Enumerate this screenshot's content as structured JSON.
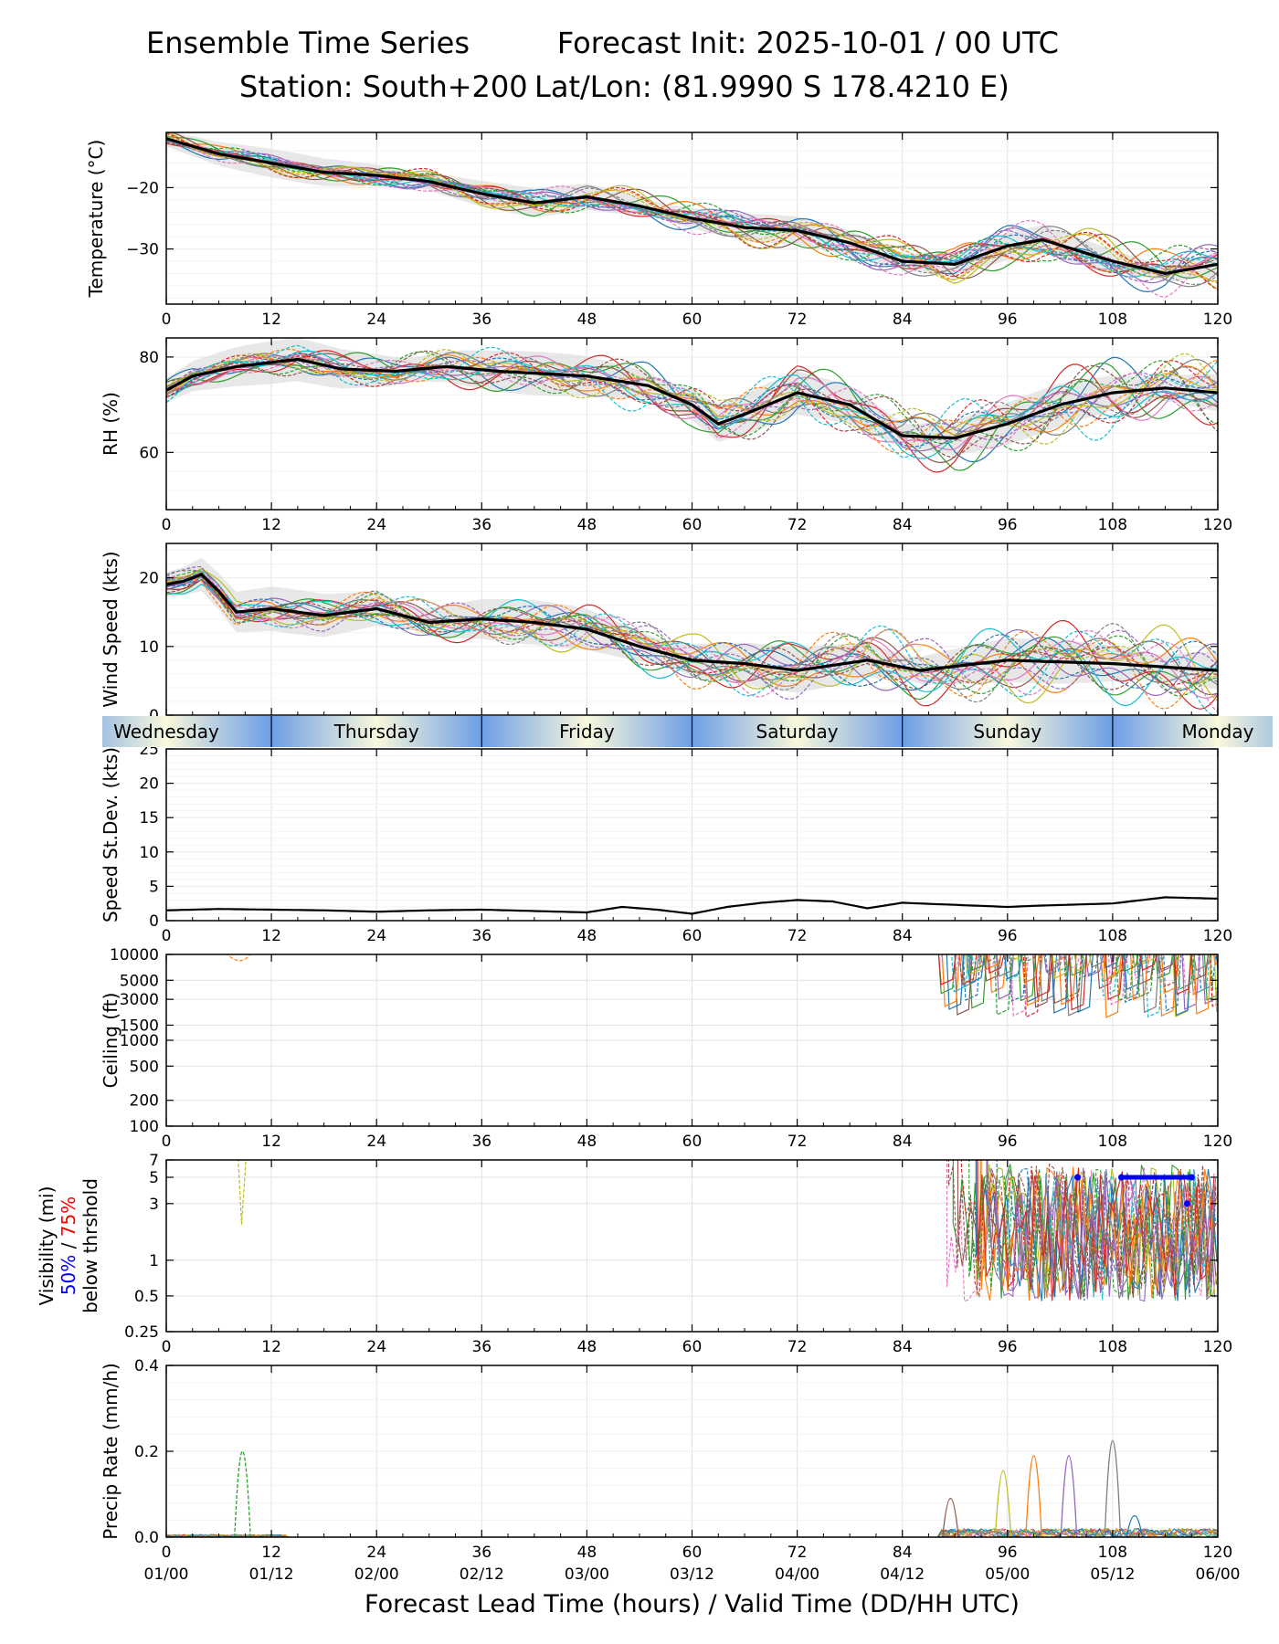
{
  "header": {
    "title_left": "Ensemble Time Series",
    "title_right": "Forecast Init: 2025-10-01 / 00 UTC",
    "station": "Station: South+200",
    "latlon": "Lat/Lon: (81.9990 S 178.4210 E)"
  },
  "colors": {
    "members": [
      "#1f77b4",
      "#ff7f0e",
      "#2ca02c",
      "#d62728",
      "#9467bd",
      "#8c564b",
      "#e377c2",
      "#7f7f7f",
      "#bcbd22",
      "#17becf"
    ],
    "mean": "#000000",
    "spread": "#d9d9d9",
    "day_band_blue": "#6e9ee6",
    "day_band_cream": "#f8f8dc",
    "vis_50": "#0000ff",
    "vis_75": "#ff0000"
  },
  "chart_data": {
    "type": "line",
    "x_label": "Forecast Lead Time (hours) / Valid Time (DD/HH UTC)",
    "x_range": [
      0,
      120
    ],
    "x_ticks": [
      0,
      12,
      24,
      36,
      48,
      60,
      72,
      84,
      96,
      108,
      120
    ],
    "valid_time_ticks": [
      "01/00",
      "01/12",
      "02/00",
      "02/12",
      "03/00",
      "03/12",
      "04/00",
      "04/12",
      "05/00",
      "05/12",
      "06/00"
    ],
    "days": [
      "Wednesday",
      "Thursday",
      "Friday",
      "Saturday",
      "Sunday",
      "Monday"
    ],
    "ensemble_members": 20,
    "panels": [
      {
        "id": "temperature",
        "ylabel": "Temperature (°C)",
        "scale": "linear",
        "ylim": [
          -39,
          -11
        ],
        "y_ticks": [
          -20,
          -30
        ],
        "y_tick_labels": [
          "−20",
          "−30"
        ],
        "mean": [
          [
            0,
            -12
          ],
          [
            6,
            -14.5
          ],
          [
            12,
            -16
          ],
          [
            18,
            -17.5
          ],
          [
            24,
            -18
          ],
          [
            30,
            -19
          ],
          [
            36,
            -21
          ],
          [
            42,
            -22.5
          ],
          [
            48,
            -21.5
          ],
          [
            54,
            -23
          ],
          [
            60,
            -25
          ],
          [
            66,
            -26.5
          ],
          [
            72,
            -27
          ],
          [
            78,
            -29
          ],
          [
            84,
            -32
          ],
          [
            90,
            -32.5
          ],
          [
            96,
            -29.5
          ],
          [
            100,
            -28.5
          ],
          [
            108,
            -32
          ],
          [
            114,
            -34
          ],
          [
            120,
            -32.5
          ]
        ],
        "spread": 1.8
      },
      {
        "id": "rh",
        "ylabel": "RH (%)",
        "scale": "linear",
        "ylim": [
          48,
          84
        ],
        "y_ticks": [
          60,
          80
        ],
        "y_tick_labels": [
          "60",
          "80"
        ],
        "mean": [
          [
            0,
            73
          ],
          [
            3,
            76
          ],
          [
            8,
            78
          ],
          [
            15,
            79.5
          ],
          [
            20,
            77.5
          ],
          [
            26,
            77
          ],
          [
            32,
            78
          ],
          [
            38,
            77
          ],
          [
            48,
            76
          ],
          [
            55,
            74
          ],
          [
            60,
            70
          ],
          [
            63,
            66
          ],
          [
            66,
            68
          ],
          [
            72,
            72.5
          ],
          [
            78,
            70
          ],
          [
            84,
            63.5
          ],
          [
            90,
            63
          ],
          [
            96,
            66
          ],
          [
            102,
            70
          ],
          [
            108,
            72.5
          ],
          [
            114,
            73.5
          ],
          [
            120,
            72.5
          ]
        ],
        "spread": 3.5
      },
      {
        "id": "wind_speed",
        "ylabel": "Wind Speed (kts)",
        "scale": "linear",
        "ylim": [
          0,
          25
        ],
        "y_ticks": [
          0,
          10,
          20
        ],
        "y_tick_labels": [
          "0",
          "10",
          "20"
        ],
        "mean": [
          [
            0,
            19
          ],
          [
            2,
            19.5
          ],
          [
            4,
            20.5
          ],
          [
            6,
            18
          ],
          [
            8,
            15
          ],
          [
            12,
            15.5
          ],
          [
            18,
            14.5
          ],
          [
            24,
            15.5
          ],
          [
            30,
            13.5
          ],
          [
            36,
            14
          ],
          [
            42,
            13.5
          ],
          [
            48,
            12.5
          ],
          [
            54,
            10
          ],
          [
            60,
            8
          ],
          [
            66,
            7.5
          ],
          [
            72,
            6.5
          ],
          [
            80,
            8
          ],
          [
            86,
            6.5
          ],
          [
            96,
            8
          ],
          [
            108,
            7.5
          ],
          [
            114,
            7
          ],
          [
            120,
            6.5
          ]
        ],
        "spread": 2.5
      },
      {
        "id": "speed_stdev",
        "ylabel": "Speed St.Dev. (kts)",
        "scale": "linear",
        "ylim": [
          0,
          25
        ],
        "y_ticks": [
          0,
          5,
          10,
          15,
          20,
          25
        ],
        "y_tick_labels": [
          "0",
          "5",
          "10",
          "15",
          "20",
          "25"
        ],
        "mean": [
          [
            0,
            1.5
          ],
          [
            6,
            1.7
          ],
          [
            12,
            1.6
          ],
          [
            18,
            1.5
          ],
          [
            24,
            1.3
          ],
          [
            30,
            1.5
          ],
          [
            36,
            1.6
          ],
          [
            42,
            1.4
          ],
          [
            48,
            1.2
          ],
          [
            52,
            2
          ],
          [
            56,
            1.6
          ],
          [
            60,
            1
          ],
          [
            64,
            2
          ],
          [
            68,
            2.6
          ],
          [
            72,
            3
          ],
          [
            76,
            2.8
          ],
          [
            80,
            1.8
          ],
          [
            84,
            2.6
          ],
          [
            90,
            2.3
          ],
          [
            96,
            2
          ],
          [
            100,
            2.2
          ],
          [
            108,
            2.5
          ],
          [
            114,
            3.4
          ],
          [
            120,
            3.2
          ]
        ],
        "spread": 0
      },
      {
        "id": "ceiling",
        "ylabel": "Ceiling (ft)",
        "scale": "log",
        "ylim": [
          100,
          10000
        ],
        "y_ticks": [
          100,
          200,
          500,
          1000,
          1500,
          3000,
          5000,
          10000
        ],
        "y_tick_labels": [
          "100",
          "200",
          "500",
          "1000",
          "1500",
          "3000",
          "5000",
          "10000"
        ],
        "cloud_window": [
          88,
          120
        ],
        "min_ceiling": 1800
      },
      {
        "id": "visibility",
        "ylabel": "Visibility (mi)",
        "ylabel_50": "50%",
        "ylabel_sep": "/",
        "ylabel_75": "75%",
        "ylabel_below": "below thrshold",
        "scale": "log",
        "ylim": [
          0.25,
          7
        ],
        "y_ticks": [
          0.25,
          0.5,
          1,
          3,
          5,
          7
        ],
        "y_tick_labels": [
          "0.25",
          "0.5",
          "1",
          "3",
          "5",
          "7"
        ],
        "fog_window": [
          89,
          120
        ],
        "min_visibility": 0.45,
        "threshold_50": [
          [
            104,
            5
          ],
          [
            109,
            5
          ],
          [
            117,
            5
          ],
          [
            116.5,
            3
          ]
        ]
      },
      {
        "id": "precip",
        "ylabel": "Precip Rate (mm/h)",
        "scale": "linear",
        "ylim": [
          0,
          0.4
        ],
        "y_ticks": [
          0.0,
          0.2,
          0.4
        ],
        "y_tick_labels": [
          "0.0",
          "0.2",
          "0.4"
        ],
        "peaks": [
          [
            8.7,
            0.2
          ],
          [
            89.5,
            0.09
          ],
          [
            95.5,
            0.155
          ],
          [
            99,
            0.19
          ],
          [
            103,
            0.19
          ],
          [
            108,
            0.225
          ],
          [
            110.5,
            0.05
          ]
        ]
      }
    ]
  }
}
